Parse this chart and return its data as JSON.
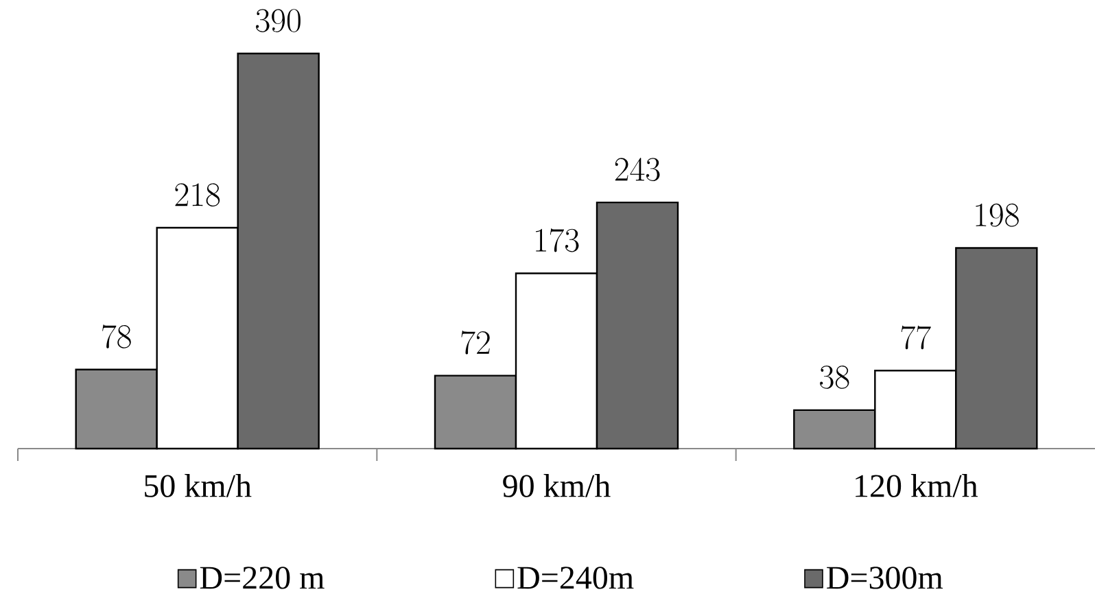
{
  "chart_data": {
    "type": "bar",
    "categories": [
      "50 km/h",
      "90 km/h",
      "120 km/h"
    ],
    "series": [
      {
        "name": "D=220 m",
        "color": "#8a8a8a",
        "values": [
          78,
          72,
          38
        ]
      },
      {
        "name": "D=240m",
        "color": "#ffffff",
        "values": [
          218,
          173,
          77
        ]
      },
      {
        "name": "D=300m",
        "color": "#6a6a6a",
        "values": [
          390,
          243,
          198
        ]
      }
    ],
    "data_labels": true,
    "legend": "bottom"
  }
}
